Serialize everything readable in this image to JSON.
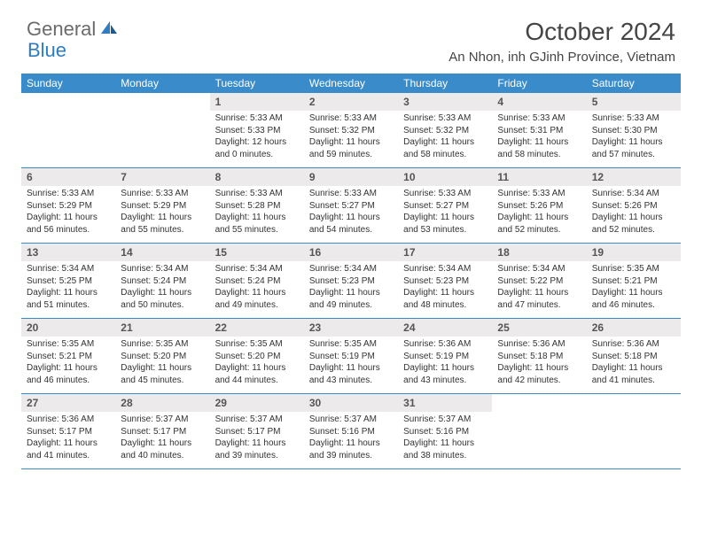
{
  "brand": {
    "text1": "General",
    "text2": "Blue"
  },
  "title": "October 2024",
  "location": "An Nhon, inh GJinh Province, Vietnam",
  "colors": {
    "header_bg": "#3a8bc9",
    "daynum_bg": "#eceaea",
    "brand_gray": "#6b6b6b",
    "brand_blue": "#2f7cc0",
    "title_color": "#454545"
  },
  "days_of_week": [
    "Sunday",
    "Monday",
    "Tuesday",
    "Wednesday",
    "Thursday",
    "Friday",
    "Saturday"
  ],
  "weeks": [
    [
      null,
      null,
      {
        "n": "1",
        "sr": "Sunrise: 5:33 AM",
        "ss": "Sunset: 5:33 PM",
        "dl": "Daylight: 12 hours and 0 minutes."
      },
      {
        "n": "2",
        "sr": "Sunrise: 5:33 AM",
        "ss": "Sunset: 5:32 PM",
        "dl": "Daylight: 11 hours and 59 minutes."
      },
      {
        "n": "3",
        "sr": "Sunrise: 5:33 AM",
        "ss": "Sunset: 5:32 PM",
        "dl": "Daylight: 11 hours and 58 minutes."
      },
      {
        "n": "4",
        "sr": "Sunrise: 5:33 AM",
        "ss": "Sunset: 5:31 PM",
        "dl": "Daylight: 11 hours and 58 minutes."
      },
      {
        "n": "5",
        "sr": "Sunrise: 5:33 AM",
        "ss": "Sunset: 5:30 PM",
        "dl": "Daylight: 11 hours and 57 minutes."
      }
    ],
    [
      {
        "n": "6",
        "sr": "Sunrise: 5:33 AM",
        "ss": "Sunset: 5:29 PM",
        "dl": "Daylight: 11 hours and 56 minutes."
      },
      {
        "n": "7",
        "sr": "Sunrise: 5:33 AM",
        "ss": "Sunset: 5:29 PM",
        "dl": "Daylight: 11 hours and 55 minutes."
      },
      {
        "n": "8",
        "sr": "Sunrise: 5:33 AM",
        "ss": "Sunset: 5:28 PM",
        "dl": "Daylight: 11 hours and 55 minutes."
      },
      {
        "n": "9",
        "sr": "Sunrise: 5:33 AM",
        "ss": "Sunset: 5:27 PM",
        "dl": "Daylight: 11 hours and 54 minutes."
      },
      {
        "n": "10",
        "sr": "Sunrise: 5:33 AM",
        "ss": "Sunset: 5:27 PM",
        "dl": "Daylight: 11 hours and 53 minutes."
      },
      {
        "n": "11",
        "sr": "Sunrise: 5:33 AM",
        "ss": "Sunset: 5:26 PM",
        "dl": "Daylight: 11 hours and 52 minutes."
      },
      {
        "n": "12",
        "sr": "Sunrise: 5:34 AM",
        "ss": "Sunset: 5:26 PM",
        "dl": "Daylight: 11 hours and 52 minutes."
      }
    ],
    [
      {
        "n": "13",
        "sr": "Sunrise: 5:34 AM",
        "ss": "Sunset: 5:25 PM",
        "dl": "Daylight: 11 hours and 51 minutes."
      },
      {
        "n": "14",
        "sr": "Sunrise: 5:34 AM",
        "ss": "Sunset: 5:24 PM",
        "dl": "Daylight: 11 hours and 50 minutes."
      },
      {
        "n": "15",
        "sr": "Sunrise: 5:34 AM",
        "ss": "Sunset: 5:24 PM",
        "dl": "Daylight: 11 hours and 49 minutes."
      },
      {
        "n": "16",
        "sr": "Sunrise: 5:34 AM",
        "ss": "Sunset: 5:23 PM",
        "dl": "Daylight: 11 hours and 49 minutes."
      },
      {
        "n": "17",
        "sr": "Sunrise: 5:34 AM",
        "ss": "Sunset: 5:23 PM",
        "dl": "Daylight: 11 hours and 48 minutes."
      },
      {
        "n": "18",
        "sr": "Sunrise: 5:34 AM",
        "ss": "Sunset: 5:22 PM",
        "dl": "Daylight: 11 hours and 47 minutes."
      },
      {
        "n": "19",
        "sr": "Sunrise: 5:35 AM",
        "ss": "Sunset: 5:21 PM",
        "dl": "Daylight: 11 hours and 46 minutes."
      }
    ],
    [
      {
        "n": "20",
        "sr": "Sunrise: 5:35 AM",
        "ss": "Sunset: 5:21 PM",
        "dl": "Daylight: 11 hours and 46 minutes."
      },
      {
        "n": "21",
        "sr": "Sunrise: 5:35 AM",
        "ss": "Sunset: 5:20 PM",
        "dl": "Daylight: 11 hours and 45 minutes."
      },
      {
        "n": "22",
        "sr": "Sunrise: 5:35 AM",
        "ss": "Sunset: 5:20 PM",
        "dl": "Daylight: 11 hours and 44 minutes."
      },
      {
        "n": "23",
        "sr": "Sunrise: 5:35 AM",
        "ss": "Sunset: 5:19 PM",
        "dl": "Daylight: 11 hours and 43 minutes."
      },
      {
        "n": "24",
        "sr": "Sunrise: 5:36 AM",
        "ss": "Sunset: 5:19 PM",
        "dl": "Daylight: 11 hours and 43 minutes."
      },
      {
        "n": "25",
        "sr": "Sunrise: 5:36 AM",
        "ss": "Sunset: 5:18 PM",
        "dl": "Daylight: 11 hours and 42 minutes."
      },
      {
        "n": "26",
        "sr": "Sunrise: 5:36 AM",
        "ss": "Sunset: 5:18 PM",
        "dl": "Daylight: 11 hours and 41 minutes."
      }
    ],
    [
      {
        "n": "27",
        "sr": "Sunrise: 5:36 AM",
        "ss": "Sunset: 5:17 PM",
        "dl": "Daylight: 11 hours and 41 minutes."
      },
      {
        "n": "28",
        "sr": "Sunrise: 5:37 AM",
        "ss": "Sunset: 5:17 PM",
        "dl": "Daylight: 11 hours and 40 minutes."
      },
      {
        "n": "29",
        "sr": "Sunrise: 5:37 AM",
        "ss": "Sunset: 5:17 PM",
        "dl": "Daylight: 11 hours and 39 minutes."
      },
      {
        "n": "30",
        "sr": "Sunrise: 5:37 AM",
        "ss": "Sunset: 5:16 PM",
        "dl": "Daylight: 11 hours and 39 minutes."
      },
      {
        "n": "31",
        "sr": "Sunrise: 5:37 AM",
        "ss": "Sunset: 5:16 PM",
        "dl": "Daylight: 11 hours and 38 minutes."
      },
      null,
      null
    ]
  ]
}
